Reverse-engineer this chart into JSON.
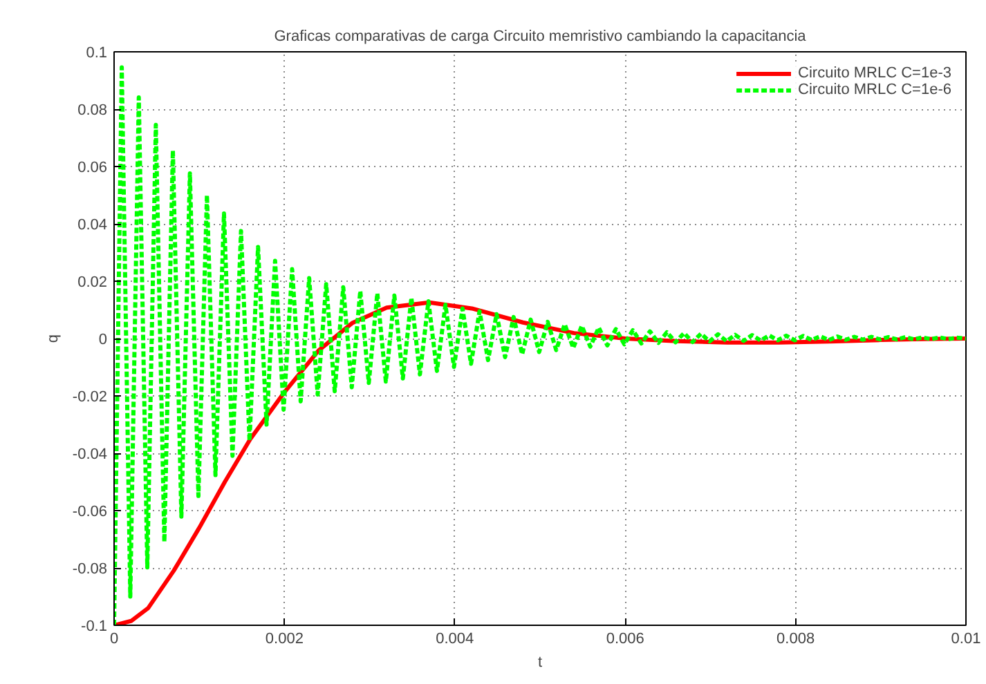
{
  "chart_data": {
    "type": "line",
    "title": "Graficas comparativas de carga Circuito memristivo cambiando la capacitancia",
    "xlabel": "t",
    "ylabel": "q",
    "xlim": [
      0,
      0.01
    ],
    "ylim": [
      -0.1,
      0.1
    ],
    "xticks": [
      0,
      0.002,
      0.004,
      0.006,
      0.008,
      0.01
    ],
    "yticks": [
      -0.1,
      -0.08,
      -0.06,
      -0.04,
      -0.02,
      0,
      0.02,
      0.04,
      0.06,
      0.08,
      0.1
    ],
    "grid": true,
    "legend": "top right",
    "series": [
      {
        "name": "Circuito MRLC C=1e-3",
        "color": "#ff0000",
        "line_style": "solid",
        "x": [
          0,
          0.0002,
          0.0004,
          0.0007,
          0.001,
          0.0013,
          0.0016,
          0.002,
          0.0024,
          0.0028,
          0.0032,
          0.0037,
          0.0042,
          0.0048,
          0.0054,
          0.006,
          0.0066,
          0.0072,
          0.0078,
          0.0084,
          0.009,
          0.0095,
          0.01
        ],
        "values": [
          -0.1,
          -0.0985,
          -0.094,
          -0.081,
          -0.066,
          -0.05,
          -0.035,
          -0.0187,
          -0.0042,
          0.0055,
          0.0108,
          0.0126,
          0.0105,
          0.0056,
          0.0019,
          0.0,
          -0.0009,
          -0.0014,
          -0.0014,
          -0.001,
          -0.0005,
          -0.0002,
          0.0
        ]
      },
      {
        "name": "Circuito MRLC C=1e-6",
        "color": "#00ff00",
        "line_style": "dashed",
        "x": [
          0,
          9e-05,
          0.00019,
          0.00029,
          0.00039,
          0.00049,
          0.00059,
          0.00069,
          0.00079,
          0.00089,
          0.00099,
          0.00109,
          0.00119,
          0.00129,
          0.00139,
          0.00149,
          0.00159,
          0.00169,
          0.00179,
          0.00189,
          0.00199,
          0.00209,
          0.00219,
          0.00229,
          0.00239,
          0.00249,
          0.00259,
          0.00269,
          0.00279,
          0.00289,
          0.00299,
          0.00309,
          0.00319,
          0.00329,
          0.00339,
          0.00349,
          0.00359,
          0.00369,
          0.00379,
          0.00389,
          0.00399,
          0.00409,
          0.00419,
          0.00429,
          0.00439,
          0.00449,
          0.00459,
          0.00469,
          0.00479,
          0.00489,
          0.00499,
          0.00509,
          0.00519,
          0.00529,
          0.00539,
          0.00549,
          0.00559,
          0.00569,
          0.00579,
          0.00589,
          0.00599,
          0.00609,
          0.00619,
          0.00629,
          0.00639,
          0.00649,
          0.00659,
          0.00669,
          0.00679,
          0.00689,
          0.00699,
          0.00709,
          0.00719,
          0.00729,
          0.00739,
          0.00749,
          0.00759,
          0.00769,
          0.00779,
          0.00789,
          0.00799,
          0.00809,
          0.00819,
          0.00829,
          0.00839,
          0.00849,
          0.00859,
          0.00869,
          0.00879,
          0.00889,
          0.00899,
          0.00909,
          0.00919,
          0.00929,
          0.00939,
          0.00949,
          0.00959,
          0.00969,
          0.00979,
          0.00989,
          0.01
        ],
        "values": [
          -0.1,
          0.0946,
          -0.09,
          0.0841,
          -0.0798,
          0.0745,
          -0.0709,
          0.0656,
          -0.0621,
          0.0576,
          -0.0549,
          0.05,
          -0.0476,
          0.0436,
          -0.0409,
          0.0375,
          -0.0356,
          0.0319,
          -0.03,
          0.0271,
          -0.0248,
          0.0242,
          -0.0219,
          0.0211,
          -0.0195,
          0.019,
          -0.0184,
          0.0179,
          -0.017,
          0.0166,
          -0.0155,
          0.0158,
          -0.015,
          0.015,
          -0.0139,
          0.0142,
          -0.0125,
          0.013,
          -0.0113,
          0.0118,
          -0.0099,
          0.0105,
          -0.0088,
          0.0095,
          -0.0075,
          0.0085,
          -0.0065,
          0.0075,
          -0.0055,
          0.0066,
          -0.0047,
          0.0058,
          -0.004,
          0.005,
          -0.0033,
          0.0044,
          -0.0028,
          0.0038,
          -0.0024,
          0.0033,
          -0.002,
          0.0029,
          -0.0017,
          0.0025,
          -0.0015,
          0.0022,
          -0.0013,
          0.0019,
          -0.0012,
          0.0017,
          -0.001,
          0.0015,
          -0.0009,
          0.0013,
          -0.0008,
          0.0012,
          -0.0007,
          0.0011,
          -0.0006,
          0.001,
          -0.0006,
          0.0009,
          -0.0005,
          0.0008,
          -0.0005,
          0.0007,
          -0.0004,
          0.0006,
          -0.0004,
          0.0006,
          -0.0003,
          0.0005,
          -0.0003,
          0.0005,
          -0.0003,
          0.0004,
          -0.0002,
          0.0004,
          -0.0002,
          0.0003,
          0.0
        ]
      }
    ]
  }
}
